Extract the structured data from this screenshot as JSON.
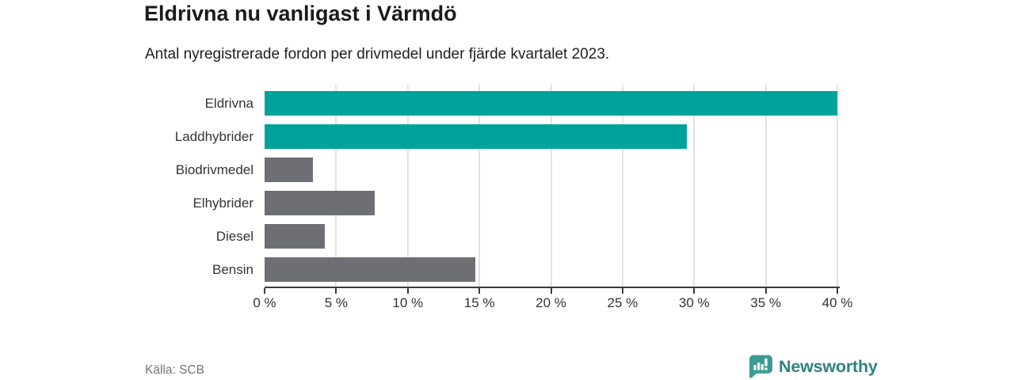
{
  "header": {
    "title": "Eldrivna nu vanligast i Värmdö",
    "subtitle": "Antal nyregistrerade fordon per drivmedel under fjärde kvartalet 2023."
  },
  "chart_data": {
    "type": "bar",
    "orientation": "horizontal",
    "title": "Eldrivna nu vanligast i Värmdö",
    "subtitle": "Antal nyregistrerade fordon per drivmedel under fjärde kvartalet 2023.",
    "categories": [
      "Eldrivna",
      "Laddhybrider",
      "Biodrivmedel",
      "Elhybrider",
      "Diesel",
      "Bensin"
    ],
    "values": [
      40.0,
      29.5,
      3.4,
      7.7,
      4.2,
      14.7
    ],
    "unit": "%",
    "xlabel": "",
    "ylabel": "",
    "xlim": [
      0,
      40
    ],
    "x_ticks": [
      0,
      5,
      10,
      15,
      20,
      25,
      30,
      35,
      40
    ],
    "x_tick_labels": [
      "0 %",
      "5 %",
      "10 %",
      "15 %",
      "20 %",
      "25 %",
      "30 %",
      "35 %",
      "40 %"
    ],
    "grid": true,
    "legend": "none",
    "bar_colors": [
      "#00a39a",
      "#00a39a",
      "#6e6e75",
      "#6e6e75",
      "#6e6e75",
      "#6e6e75"
    ],
    "highlight_color": "#00a39a",
    "default_color": "#6e6e75"
  },
  "footer": {
    "source": "Källa: SCB",
    "brand": {
      "name": "Newsworthy",
      "icon": "bar-chart-speech-bubble-icon",
      "text_color": "#2e827f",
      "icon_color": "#3d9b94"
    }
  }
}
